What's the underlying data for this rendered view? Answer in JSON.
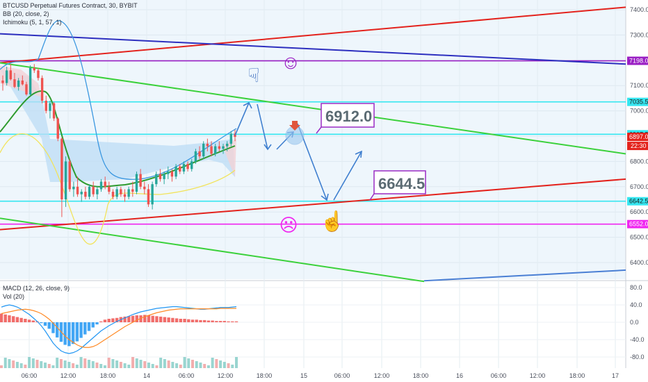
{
  "header": {
    "symbol_line": "BTCUSD Perpetual Futures Contract, 30, BYBIT",
    "bb_line": "BB (20, close, 2)",
    "ichimoku_line": "Ichimoku (5, 1, 57, 1)"
  },
  "lower_pane": {
    "macd_line": "MACD (12, 26, close, 9)",
    "vol_line": "Vol (20)"
  },
  "annotations": {
    "target_up": "6912.0",
    "target_down": "6644.5",
    "smile": "☺",
    "sad": "☹",
    "hand_up": "☝",
    "hand_down": "☟"
  },
  "colors": {
    "bg_main": "#eef6fc",
    "red_line": "#e3221c",
    "blue_line": "#2d2fbf",
    "purple_line": "#9a1fc4",
    "cyan_line": "#35e6f0",
    "magenta_line": "#f025f0",
    "green_line": "#3bd13b",
    "arrow": "#3f7fcf",
    "label_box": "#9a2bc4",
    "label_text": "#5b6b73"
  },
  "chart_data": [
    {
      "type": "candlestick",
      "title": "BTCUSD Perpetual Futures Contract, 30, BYBIT",
      "ylim": [
        6320,
        7460
      ],
      "y_ticks": [
        6400.0,
        6500.0,
        6600.0,
        6700.0,
        6800.0,
        6900.0,
        7000.0,
        7100.0,
        7200.0,
        7300.0,
        7400.0
      ],
      "x_ticks": [
        "06:00",
        "12:00",
        "18:00",
        "14",
        "06:00",
        "12:00",
        "18:00",
        "15",
        "06:00",
        "12:00",
        "18:00",
        "16",
        "06:00",
        "12:00",
        "18:00",
        "17"
      ],
      "price_markers": [
        {
          "value": 7198.0,
          "label": "7198.0",
          "color": "#9a1fc4"
        },
        {
          "value": 7035.5,
          "label": "7035.5",
          "color": "#35e6f0"
        },
        {
          "value": 6907.5,
          "label": "6907.5",
          "color": "#35e6f0"
        },
        {
          "value": 6897.0,
          "label": "6897.0",
          "color": "#e3221c"
        },
        {
          "value": 6642.5,
          "label": "6642.5",
          "color": "#35e6f0"
        },
        {
          "value": 6552.0,
          "label": "6552.0",
          "color": "#f025f0"
        }
      ],
      "countdown": "22:30",
      "horizontal_levels": [
        {
          "value": 7198.0,
          "color": "#9a1fc4"
        },
        {
          "value": 7035.5,
          "color": "#35e6f0"
        },
        {
          "value": 6907.5,
          "color": "#35e6f0"
        },
        {
          "value": 6642.5,
          "color": "#35e6f0"
        },
        {
          "value": 6552.0,
          "color": "#f025f0"
        }
      ],
      "trend_lines": [
        {
          "color": "#e3221c",
          "from": [
            0,
            7190
          ],
          "to": [
            900,
            7410
          ]
        },
        {
          "color": "#2d2fbf",
          "from": [
            0,
            7305
          ],
          "to": [
            900,
            7185
          ]
        },
        {
          "color": "#3bd13b",
          "from": [
            0,
            7190
          ],
          "to": [
            900,
            6830
          ]
        },
        {
          "color": "#e3221c",
          "from": [
            0,
            6530
          ],
          "to": [
            900,
            6730
          ]
        },
        {
          "color": "#3bd13b",
          "from": [
            0,
            6575
          ],
          "to": [
            610,
            6325
          ]
        }
      ],
      "candles": [
        [
          7120,
          7140,
          7080,
          7110
        ],
        [
          7110,
          7175,
          7100,
          7160
        ],
        [
          7160,
          7185,
          7120,
          7125
        ],
        [
          7125,
          7150,
          7090,
          7095
        ],
        [
          7095,
          7130,
          7080,
          7120
        ],
        [
          7120,
          7140,
          7100,
          7105
        ],
        [
          7105,
          7115,
          7060,
          7065
        ],
        [
          7065,
          7180,
          7060,
          7170
        ],
        [
          7170,
          7185,
          7150,
          7160
        ],
        [
          7160,
          7170,
          7120,
          7130
        ],
        [
          7130,
          7140,
          7030,
          7040
        ],
        [
          7040,
          7060,
          6990,
          7000
        ],
        [
          7000,
          7040,
          6970,
          7030
        ],
        [
          7030,
          7035,
          6960,
          6970
        ],
        [
          6970,
          6975,
          6880,
          6890
        ],
        [
          6890,
          6895,
          6580,
          6650
        ],
        [
          6650,
          6820,
          6620,
          6800
        ],
        [
          6800,
          6810,
          6680,
          6690
        ],
        [
          6690,
          6720,
          6660,
          6700
        ],
        [
          6700,
          6740,
          6660,
          6670
        ],
        [
          6670,
          6690,
          6640,
          6680
        ],
        [
          6680,
          6700,
          6650,
          6660
        ],
        [
          6660,
          6710,
          6650,
          6700
        ],
        [
          6700,
          6720,
          6660,
          6670
        ],
        [
          6670,
          6700,
          6650,
          6690
        ],
        [
          6690,
          6730,
          6680,
          6720
        ],
        [
          6720,
          6740,
          6690,
          6700
        ],
        [
          6700,
          6720,
          6670,
          6680
        ],
        [
          6680,
          6690,
          6650,
          6660
        ],
        [
          6660,
          6700,
          6650,
          6690
        ],
        [
          6690,
          6700,
          6660,
          6670
        ],
        [
          6670,
          6690,
          6640,
          6660
        ],
        [
          6660,
          6700,
          6650,
          6690
        ],
        [
          6690,
          6720,
          6660,
          6680
        ],
        [
          6680,
          6760,
          6670,
          6750
        ],
        [
          6750,
          6770,
          6690,
          6700
        ],
        [
          6700,
          6720,
          6670,
          6690
        ],
        [
          6690,
          6710,
          6620,
          6630
        ],
        [
          6630,
          6720,
          6610,
          6710
        ],
        [
          6710,
          6760,
          6700,
          6750
        ],
        [
          6750,
          6770,
          6720,
          6730
        ],
        [
          6730,
          6760,
          6710,
          6750
        ],
        [
          6750,
          6780,
          6730,
          6760
        ],
        [
          6760,
          6770,
          6720,
          6740
        ],
        [
          6740,
          6790,
          6730,
          6780
        ],
        [
          6780,
          6790,
          6750,
          6760
        ],
        [
          6760,
          6800,
          6750,
          6790
        ],
        [
          6790,
          6800,
          6760,
          6770
        ],
        [
          6770,
          6810,
          6760,
          6800
        ],
        [
          6800,
          6850,
          6790,
          6840
        ],
        [
          6840,
          6860,
          6810,
          6820
        ],
        [
          6820,
          6880,
          6810,
          6870
        ],
        [
          6870,
          6890,
          6840,
          6860
        ],
        [
          6860,
          6880,
          6820,
          6830
        ],
        [
          6830,
          6870,
          6820,
          6860
        ],
        [
          6860,
          6880,
          6840,
          6850
        ],
        [
          6850,
          6870,
          6830,
          6860
        ],
        [
          6860,
          6880,
          6840,
          6870
        ],
        [
          6870,
          6920,
          6860,
          6910
        ],
        [
          6910,
          6925,
          6880,
          6897
        ]
      ]
    },
    {
      "type": "macd",
      "title": "MACD (12, 26, close, 9)",
      "ylim": [
        -100,
        100
      ],
      "y_ticks": [
        80.0,
        40.0,
        0.0,
        -40.0,
        -80.0
      ],
      "histogram": [
        20,
        18,
        16,
        14,
        12,
        10,
        8,
        6,
        4,
        2,
        -2,
        -8,
        -15,
        -25,
        -35,
        -45,
        -52,
        -55,
        -50,
        -44,
        -36,
        -28,
        -20,
        -12,
        -5,
        2,
        6,
        8,
        9,
        10,
        12,
        13,
        14,
        15,
        16,
        16,
        17,
        16,
        15,
        14,
        13,
        12,
        11,
        10,
        9,
        8,
        8,
        7,
        6,
        6,
        5,
        5,
        4,
        4,
        3,
        3,
        3,
        2,
        2,
        2
      ],
      "macd_line": [
        35,
        38,
        40,
        38,
        35,
        30,
        24,
        18,
        10,
        2,
        -8,
        -20,
        -34,
        -48,
        -58,
        -66,
        -70,
        -72,
        -70,
        -66,
        -60,
        -52,
        -44,
        -36,
        -28,
        -20,
        -14,
        -8,
        -3,
        2,
        6,
        10,
        14,
        18,
        21,
        24,
        26,
        28,
        30,
        32,
        33,
        34,
        35,
        36,
        36,
        35,
        34,
        33,
        32,
        31,
        30,
        30,
        31,
        32,
        33,
        34,
        34,
        34,
        35,
        36
      ],
      "signal_line": [
        20,
        22,
        24,
        26,
        28,
        29,
        30,
        29,
        27,
        24,
        20,
        14,
        7,
        -2,
        -12,
        -22,
        -32,
        -40,
        -46,
        -52,
        -56,
        -58,
        -58,
        -56,
        -52,
        -46,
        -40,
        -34,
        -28,
        -22,
        -16,
        -10,
        -5,
        0,
        5,
        9,
        13,
        16,
        19,
        22,
        24,
        26,
        28,
        29,
        30,
        31,
        31,
        31,
        31,
        31,
        31,
        31,
        31,
        31,
        31,
        32,
        32,
        32,
        32,
        32
      ]
    }
  ]
}
